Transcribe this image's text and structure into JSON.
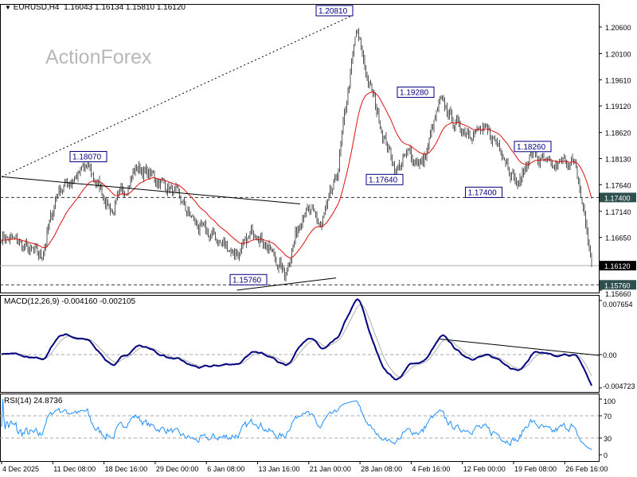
{
  "header": {
    "symbol": "EURUSD,H4",
    "ohlc": "1.16043 1.16134 1.15810 1.16120"
  },
  "watermark": "ActionForex",
  "colors": {
    "ma": "#e01010",
    "macd": "#000080",
    "signal": "#b0b0b0",
    "rsi": "#1e90ff",
    "tag_bg": "#2f4f4f",
    "current_bg": "#000000",
    "label_border": "#000080"
  },
  "chart_data": [
    {
      "type": "ohlc",
      "title": "EURUSD,H4",
      "ylim": [
        1.1566,
        1.21
      ],
      "yticks": [
        "1.20600",
        "1.20100",
        "1.19610",
        "1.19120",
        "1.18620",
        "1.18130",
        "1.17640",
        "1.17140",
        "1.16650",
        "1.15660"
      ],
      "ytick_values": [
        1.206,
        1.201,
        1.1961,
        1.1912,
        1.1862,
        1.1813,
        1.1764,
        1.1714,
        1.1665,
        1.1566
      ],
      "price_keypoints_bar_close": [
        [
          0,
          1.167
        ],
        [
          13,
          1.1655
        ],
        [
          33,
          1.1626
        ],
        [
          47,
          1.1753
        ],
        [
          72,
          1.1797
        ],
        [
          93,
          1.1715
        ],
        [
          113,
          1.1797
        ],
        [
          140,
          1.176
        ],
        [
          167,
          1.1678
        ],
        [
          200,
          1.1633
        ],
        [
          213,
          1.1685
        ],
        [
          237,
          1.1596
        ],
        [
          253,
          1.1723
        ],
        [
          267,
          1.1685
        ],
        [
          280,
          1.1767
        ],
        [
          288,
          1.1902
        ],
        [
          297,
          1.2051
        ],
        [
          307,
          1.1961
        ],
        [
          320,
          1.1857
        ],
        [
          330,
          1.179
        ],
        [
          340,
          1.182
        ],
        [
          353,
          1.1805
        ],
        [
          367,
          1.1917
        ],
        [
          383,
          1.1872
        ],
        [
          400,
          1.1864
        ],
        [
          417,
          1.1842
        ],
        [
          433,
          1.176
        ],
        [
          443,
          1.1827
        ],
        [
          460,
          1.179
        ],
        [
          477,
          1.1813
        ],
        [
          483,
          1.1767
        ],
        [
          490,
          1.1678
        ],
        [
          494,
          1.1612
        ]
      ],
      "moving_average": "red line",
      "level_tags": [
        {
          "text": "1.17400",
          "value": 1.174
        },
        {
          "text": "1.15760",
          "value": 1.1576
        }
      ],
      "current_price": {
        "text": "1.16120",
        "value": 1.1612
      },
      "annotations": [
        {
          "text": "1.20810",
          "bar": 290,
          "value": 1.2081
        },
        {
          "text": "1.19280",
          "bar": 358,
          "value": 1.1928
        },
        {
          "text": "1.18070",
          "bar": 84,
          "value": 1.1807
        },
        {
          "text": "1.18260",
          "bar": 456,
          "value": 1.1826
        },
        {
          "text": "1.17640",
          "bar": 332,
          "value": 1.1764
        },
        {
          "text": "1.17400",
          "bar": 415,
          "value": 1.174
        },
        {
          "text": "1.15760",
          "bar": 218,
          "value": 1.1576
        }
      ],
      "trendlines": [
        {
          "style": "dotted",
          "from": [
            0,
            1.1779
          ],
          "to": [
            293,
            1.2081
          ]
        },
        {
          "style": "solid",
          "from": [
            0,
            1.1779
          ],
          "to": [
            250,
            1.1728
          ]
        },
        {
          "style": "solid",
          "from": [
            197,
            1.1566
          ],
          "to": [
            280,
            1.1589
          ]
        }
      ]
    },
    {
      "type": "line",
      "title": "MACD(12,26,9) -0.004160 -0.002105",
      "ylim": [
        -0.004723,
        0.007654
      ],
      "yticks": [
        "0.007654",
        "0.00",
        "-0.004723"
      ],
      "series": [
        {
          "name": "MACD",
          "color": "#000080"
        },
        {
          "name": "Signal",
          "color": "#b0b0b0"
        }
      ],
      "last_values": {
        "macd": -0.00416,
        "signal": -0.002105
      }
    },
    {
      "type": "line",
      "title": "RSI(14) 24.8736",
      "ylim": [
        0,
        100
      ],
      "yticks": [
        "100",
        "70",
        "30",
        "0"
      ],
      "levels": [
        70,
        30
      ],
      "last_value": 24.8736
    }
  ],
  "xaxis": {
    "ticks": [
      "4 Dec 2025",
      "11 Dec 08:00",
      "18 Dec 16:00",
      "29 Dec 00:00",
      "6 Jan 08:00",
      "13 Jan 16:00",
      "21 Jan 00:00",
      "28 Jan 08:00",
      "4 Feb 16:00",
      "12 Feb 00:00",
      "19 Feb 08:00",
      "26 Feb 16:00"
    ]
  }
}
